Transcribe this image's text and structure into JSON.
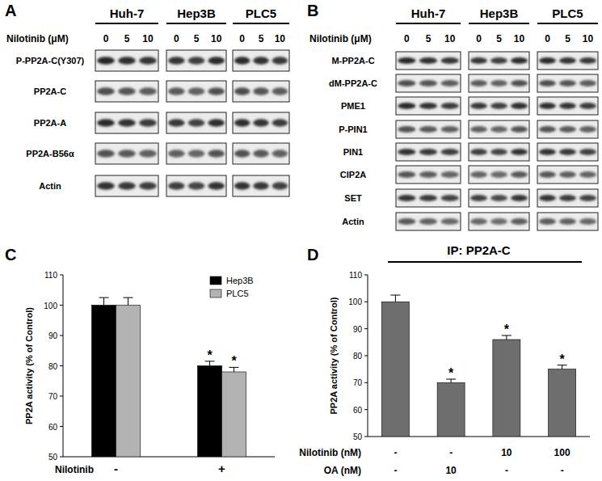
{
  "blots": [
    {
      "panel": "A",
      "dose_label": "Nilotinib (μM)",
      "cell_lines": [
        "Huh-7",
        "Hep3B",
        "PLC5"
      ],
      "doses": [
        0,
        5,
        10
      ],
      "rows": [
        "P-PP2A-C(Y307)",
        "PP2A-C",
        "PP2A-A",
        "PP2A-B56α",
        "Actin"
      ]
    },
    {
      "panel": "B",
      "dose_label": "Nilotinib (μM)",
      "cell_lines": [
        "Huh-7",
        "Hep3B",
        "PLC5"
      ],
      "doses": [
        0,
        5,
        10
      ],
      "rows": [
        "M-PP2A-C",
        "dM-PP2A-C",
        "PME1",
        "P-PIN1",
        "PIN1",
        "CIP2A",
        "SET",
        "Actin"
      ]
    }
  ],
  "chart_data": [
    {
      "panel": "C",
      "type": "bar",
      "ylabel": "PP2A activity (% of Control)",
      "xlabel": "Nilotinib",
      "categories": [
        "-",
        "+"
      ],
      "series": [
        {
          "name": "Hep3B",
          "color": "#000000",
          "values": [
            100,
            80
          ],
          "errors": [
            2.5,
            1.5
          ],
          "significance": [
            null,
            "*"
          ]
        },
        {
          "name": "PLC5",
          "color": "#b3b3b3",
          "values": [
            100,
            78
          ],
          "errors": [
            2.5,
            1.5
          ],
          "significance": [
            null,
            "*"
          ]
        }
      ],
      "ylim": [
        50,
        110
      ],
      "yticks": [
        50,
        60,
        70,
        80,
        90,
        100,
        110
      ],
      "legend": "top-right",
      "grid": false
    },
    {
      "panel": "D",
      "type": "bar",
      "title": "IP: PP2A-C",
      "ylabel": "PP2A activity (% of Control)",
      "series": [
        {
          "color": "#6e6e6e",
          "values": [
            100,
            70,
            86,
            75
          ],
          "errors": [
            2.5,
            1.3,
            1.5,
            1.5
          ],
          "significance": [
            null,
            "*",
            "*",
            "*"
          ]
        }
      ],
      "conditions": [
        {
          "label": "Nilotinib (nM)",
          "values": [
            "-",
            "-",
            "10",
            "100"
          ]
        },
        {
          "label": "OA (nM)",
          "values": [
            "-",
            "10",
            "-",
            "-"
          ]
        }
      ],
      "ylim": [
        50,
        110
      ],
      "yticks": [
        50,
        60,
        70,
        80,
        90,
        100,
        110
      ],
      "grid": false
    }
  ]
}
